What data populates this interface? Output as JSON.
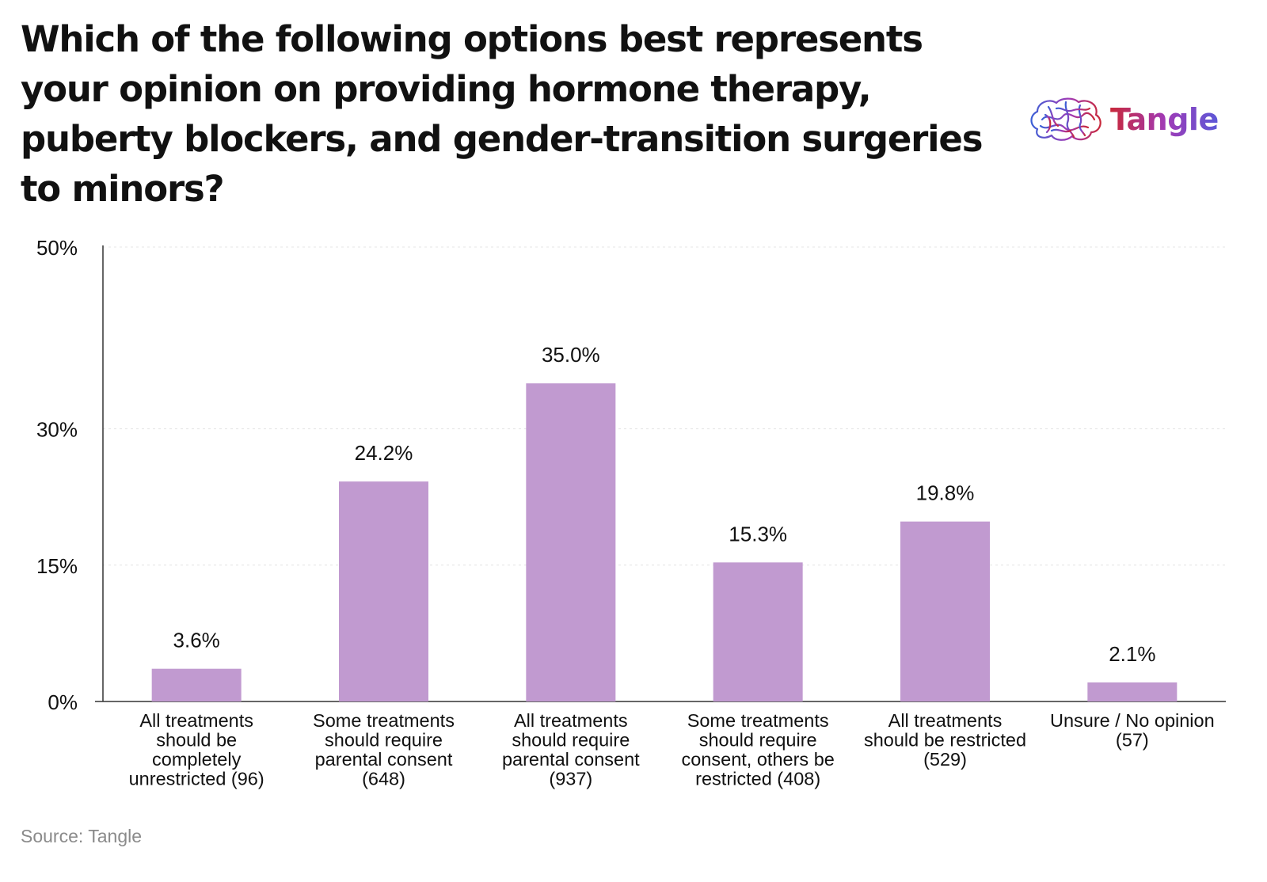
{
  "header": {
    "title": "Which of the following options best represents your opinion on providing hormone therapy, puberty blockers, and gender-transition surgeries to minors?"
  },
  "logo": {
    "text": "Tangle",
    "icon": "brain-icon",
    "gradient": [
      "#3b5fd6",
      "#a13ab5",
      "#c8283a",
      "#5b58d8"
    ]
  },
  "chart_data": {
    "type": "bar",
    "categories": [
      "All treatments should be completely unrestricted (96)",
      "Some treatments should require parental consent (648)",
      "All treatments should require parental consent (937)",
      "Some treatments should require consent, others be restricted (408)",
      "All treatments should be restricted (529)",
      "Unsure / No opinion (57)"
    ],
    "category_lines": [
      [
        "All treatments",
        "should be",
        "completely",
        "unrestricted (96)"
      ],
      [
        "Some treatments",
        "should require",
        "parental consent",
        "(648)"
      ],
      [
        "All treatments",
        "should require",
        "parental consent",
        "(937)"
      ],
      [
        "Some treatments",
        "should require",
        "consent, others be",
        "restricted (408)"
      ],
      [
        "All treatments",
        "should be restricted",
        "(529)"
      ],
      [
        "Unsure / No opinion",
        "(57)"
      ]
    ],
    "values": [
      3.6,
      24.2,
      35.0,
      15.3,
      19.8,
      2.1
    ],
    "value_labels": [
      "3.6%",
      "24.2%",
      "35.0%",
      "15.3%",
      "19.8%",
      "2.1%"
    ],
    "y_ticks": [
      0,
      15,
      30,
      50
    ],
    "y_tick_labels": [
      "0%",
      "15%",
      "30%",
      "50%"
    ],
    "ylim": [
      0,
      50
    ],
    "grid": true,
    "bar_color": "#c19ad0",
    "title": "",
    "xlabel": "",
    "ylabel": ""
  },
  "footer": {
    "source": "Source: Tangle"
  }
}
